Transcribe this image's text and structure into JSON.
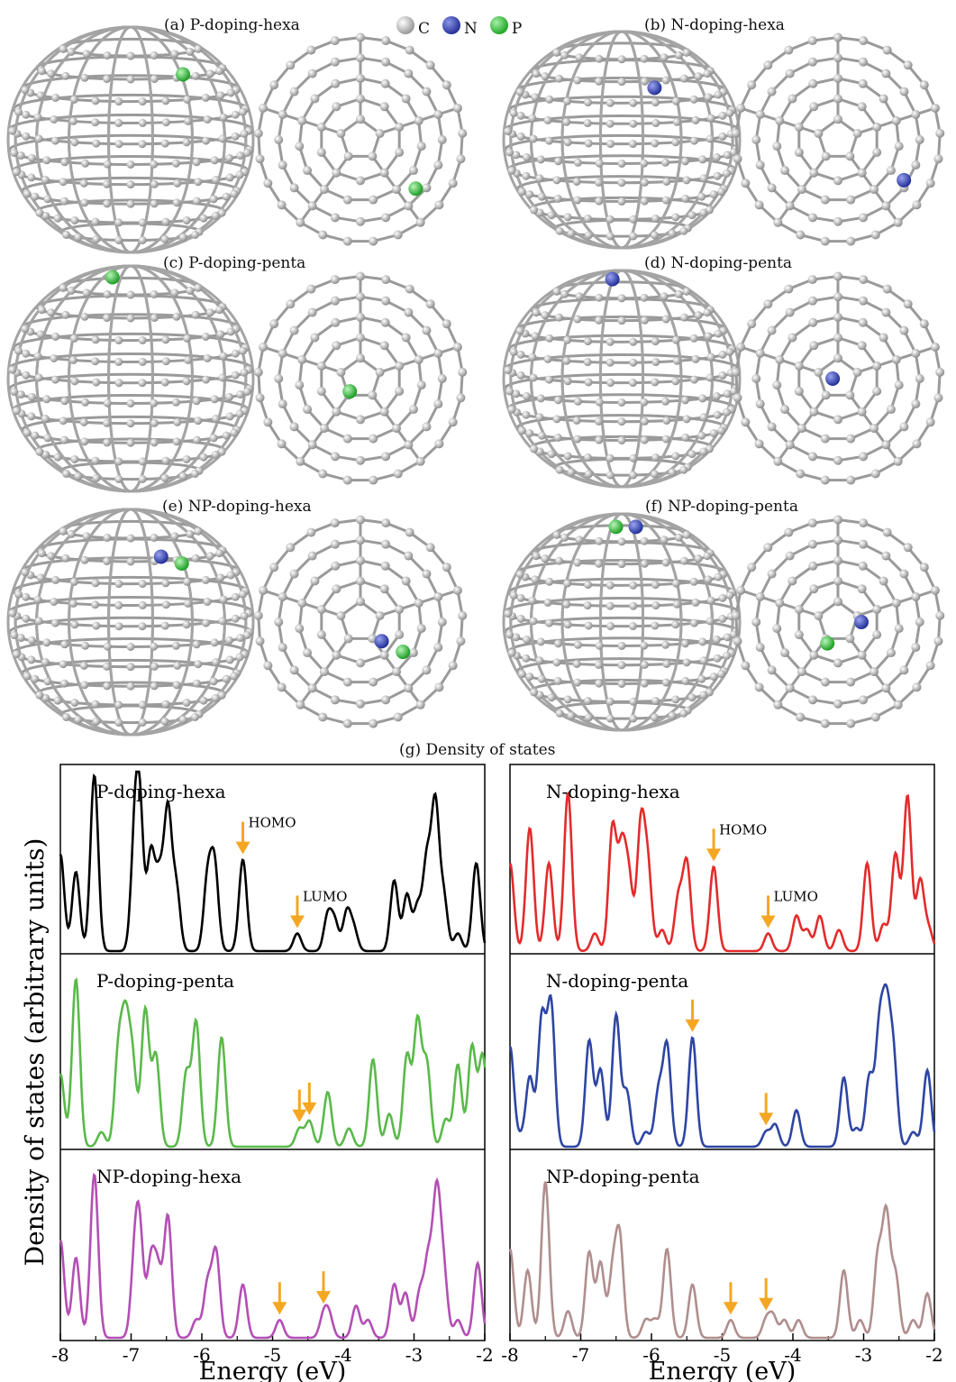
{
  "captions": {
    "a": "(a) P-doping-hexa",
    "b": "(b) N-doping-hexa",
    "c": "(c) P-doping-penta",
    "d": "(d) N-doping-penta",
    "e": "(e) NP-doping-hexa",
    "f": "(f) NP-doping-penta",
    "g": "(g) Density of states"
  },
  "atom_legend": [
    {
      "label": "C",
      "color": "#b8b8b8"
    },
    {
      "label": "N",
      "color": "#3a48b4"
    },
    {
      "label": "P",
      "color": "#3cc043"
    }
  ],
  "chart_data": {
    "type": "line",
    "title": "(g) Density of states",
    "xlabel": "Energy (eV)",
    "ylabel": "Density of states (arbitrary units)",
    "xlim": [
      -8,
      -2
    ],
    "x_ticks": [
      -8,
      -7,
      -6,
      -5,
      -4,
      -3,
      -2
    ],
    "x_tick_labels": [
      "-8",
      "-7",
      "-6",
      "-5",
      "-4",
      "-3",
      "-2"
    ],
    "ylim": [
      0,
      1
    ],
    "grid": false,
    "series": [
      {
        "name": "P-doping-hexa",
        "color": "#000000",
        "homo": -5.42,
        "lumo": -4.65,
        "arrow_labels": [
          "HOMO",
          "LUMO"
        ],
        "peaks": [
          [
            -8.0,
            0.55
          ],
          [
            -7.78,
            0.45
          ],
          [
            -7.52,
            1.0
          ],
          [
            -6.95,
            0.55
          ],
          [
            -6.88,
            0.75
          ],
          [
            -6.72,
            0.55
          ],
          [
            -6.6,
            0.4
          ],
          [
            -6.48,
            0.78
          ],
          [
            -6.36,
            0.35
          ],
          [
            -5.92,
            0.4
          ],
          [
            -5.82,
            0.48
          ],
          [
            -5.42,
            0.52
          ],
          [
            -4.65,
            0.1
          ],
          [
            -4.22,
            0.2
          ],
          [
            -4.12,
            0.16
          ],
          [
            -3.95,
            0.22
          ],
          [
            -3.85,
            0.12
          ],
          [
            -3.28,
            0.4
          ],
          [
            -3.1,
            0.32
          ],
          [
            -2.95,
            0.25
          ],
          [
            -2.82,
            0.5
          ],
          [
            -2.7,
            0.82
          ],
          [
            -2.58,
            0.3
          ],
          [
            -2.38,
            0.1
          ],
          [
            -2.12,
            0.5
          ]
        ]
      },
      {
        "name": "N-doping-hexa",
        "color": "#e32b2b",
        "homo": -5.12,
        "lumo": -4.35,
        "arrow_labels": [
          "HOMO",
          "LUMO"
        ],
        "peaks": [
          [
            -8.0,
            0.5
          ],
          [
            -7.72,
            0.7
          ],
          [
            -7.45,
            0.5
          ],
          [
            -7.18,
            0.9
          ],
          [
            -6.8,
            0.1
          ],
          [
            -6.55,
            0.7
          ],
          [
            -6.42,
            0.55
          ],
          [
            -6.32,
            0.4
          ],
          [
            -6.15,
            0.7
          ],
          [
            -6.05,
            0.45
          ],
          [
            -5.85,
            0.12
          ],
          [
            -5.62,
            0.3
          ],
          [
            -5.5,
            0.5
          ],
          [
            -5.12,
            0.48
          ],
          [
            -4.35,
            0.1
          ],
          [
            -3.95,
            0.2
          ],
          [
            -3.8,
            0.12
          ],
          [
            -3.62,
            0.2
          ],
          [
            -3.35,
            0.12
          ],
          [
            -2.95,
            0.5
          ],
          [
            -2.72,
            0.15
          ],
          [
            -2.55,
            0.55
          ],
          [
            -2.38,
            0.88
          ],
          [
            -2.2,
            0.4
          ],
          [
            -2.08,
            0.12
          ]
        ]
      },
      {
        "name": "P-doping-penta",
        "color": "#5ab94a",
        "homo": -4.62,
        "lumo": -4.48,
        "arrow_labels": [],
        "peaks": [
          [
            -8.0,
            0.4
          ],
          [
            -7.78,
            0.92
          ],
          [
            -7.42,
            0.08
          ],
          [
            -7.18,
            0.5
          ],
          [
            -7.08,
            0.62
          ],
          [
            -6.98,
            0.45
          ],
          [
            -6.8,
            0.75
          ],
          [
            -6.65,
            0.5
          ],
          [
            -6.22,
            0.4
          ],
          [
            -6.08,
            0.68
          ],
          [
            -5.72,
            0.6
          ],
          [
            -4.62,
            0.1
          ],
          [
            -4.48,
            0.14
          ],
          [
            -4.22,
            0.3
          ],
          [
            -3.92,
            0.1
          ],
          [
            -3.58,
            0.48
          ],
          [
            -3.35,
            0.18
          ],
          [
            -3.1,
            0.5
          ],
          [
            -2.95,
            0.68
          ],
          [
            -2.82,
            0.45
          ],
          [
            -2.55,
            0.15
          ],
          [
            -2.38,
            0.45
          ],
          [
            -2.18,
            0.55
          ],
          [
            -2.03,
            0.5
          ]
        ]
      },
      {
        "name": "N-doping-penta",
        "color": "#2e45a3",
        "homo": -5.42,
        "lumo": -4.38,
        "arrow_labels": [],
        "peaks": [
          [
            -8.0,
            0.55
          ],
          [
            -7.85,
            0.05
          ],
          [
            -7.72,
            0.38
          ],
          [
            -7.55,
            0.7
          ],
          [
            -7.42,
            0.78
          ],
          [
            -6.88,
            0.58
          ],
          [
            -6.72,
            0.42
          ],
          [
            -6.5,
            0.72
          ],
          [
            -6.35,
            0.3
          ],
          [
            -6.08,
            0.08
          ],
          [
            -5.9,
            0.3
          ],
          [
            -5.78,
            0.55
          ],
          [
            -5.42,
            0.6
          ],
          [
            -4.38,
            0.08
          ],
          [
            -4.25,
            0.12
          ],
          [
            -3.95,
            0.2
          ],
          [
            -3.28,
            0.38
          ],
          [
            -3.1,
            0.1
          ],
          [
            -2.92,
            0.38
          ],
          [
            -2.78,
            0.6
          ],
          [
            -2.68,
            0.68
          ],
          [
            -2.58,
            0.48
          ],
          [
            -2.3,
            0.08
          ],
          [
            -2.1,
            0.42
          ]
        ]
      },
      {
        "name": "NP-doping-hexa",
        "color": "#b34fb5",
        "homo": -4.9,
        "lumo": -4.28,
        "arrow_labels": [],
        "peaks": [
          [
            -8.0,
            0.55
          ],
          [
            -7.78,
            0.45
          ],
          [
            -7.52,
            0.92
          ],
          [
            -6.95,
            0.38
          ],
          [
            -6.88,
            0.55
          ],
          [
            -6.72,
            0.42
          ],
          [
            -6.62,
            0.35
          ],
          [
            -6.48,
            0.68
          ],
          [
            -6.08,
            0.1
          ],
          [
            -5.92,
            0.3
          ],
          [
            -5.8,
            0.48
          ],
          [
            -5.42,
            0.3
          ],
          [
            -4.9,
            0.1
          ],
          [
            -4.28,
            0.12
          ],
          [
            -4.2,
            0.12
          ],
          [
            -3.82,
            0.18
          ],
          [
            -3.65,
            0.1
          ],
          [
            -3.28,
            0.3
          ],
          [
            -3.12,
            0.25
          ],
          [
            -2.92,
            0.25
          ],
          [
            -2.8,
            0.42
          ],
          [
            -2.68,
            0.78
          ],
          [
            -2.58,
            0.35
          ],
          [
            -2.38,
            0.1
          ],
          [
            -2.1,
            0.42
          ]
        ]
      },
      {
        "name": "NP-doping-penta",
        "color": "#b08e8e",
        "homo": -4.88,
        "lumo": -4.38,
        "arrow_labels": [],
        "peaks": [
          [
            -8.0,
            0.5
          ],
          [
            -7.75,
            0.38
          ],
          [
            -7.5,
            0.88
          ],
          [
            -7.18,
            0.15
          ],
          [
            -6.88,
            0.48
          ],
          [
            -6.72,
            0.42
          ],
          [
            -6.55,
            0.35
          ],
          [
            -6.45,
            0.55
          ],
          [
            -6.08,
            0.1
          ],
          [
            -5.95,
            0.1
          ],
          [
            -5.78,
            0.5
          ],
          [
            -5.42,
            0.3
          ],
          [
            -4.88,
            0.1
          ],
          [
            -4.38,
            0.1
          ],
          [
            -4.28,
            0.12
          ],
          [
            -4.12,
            0.1
          ],
          [
            -3.92,
            0.1
          ],
          [
            -3.28,
            0.38
          ],
          [
            -3.05,
            0.1
          ],
          [
            -2.8,
            0.45
          ],
          [
            -2.68,
            0.68
          ],
          [
            -2.55,
            0.35
          ],
          [
            -2.3,
            0.1
          ],
          [
            -2.1,
            0.25
          ]
        ]
      }
    ]
  }
}
